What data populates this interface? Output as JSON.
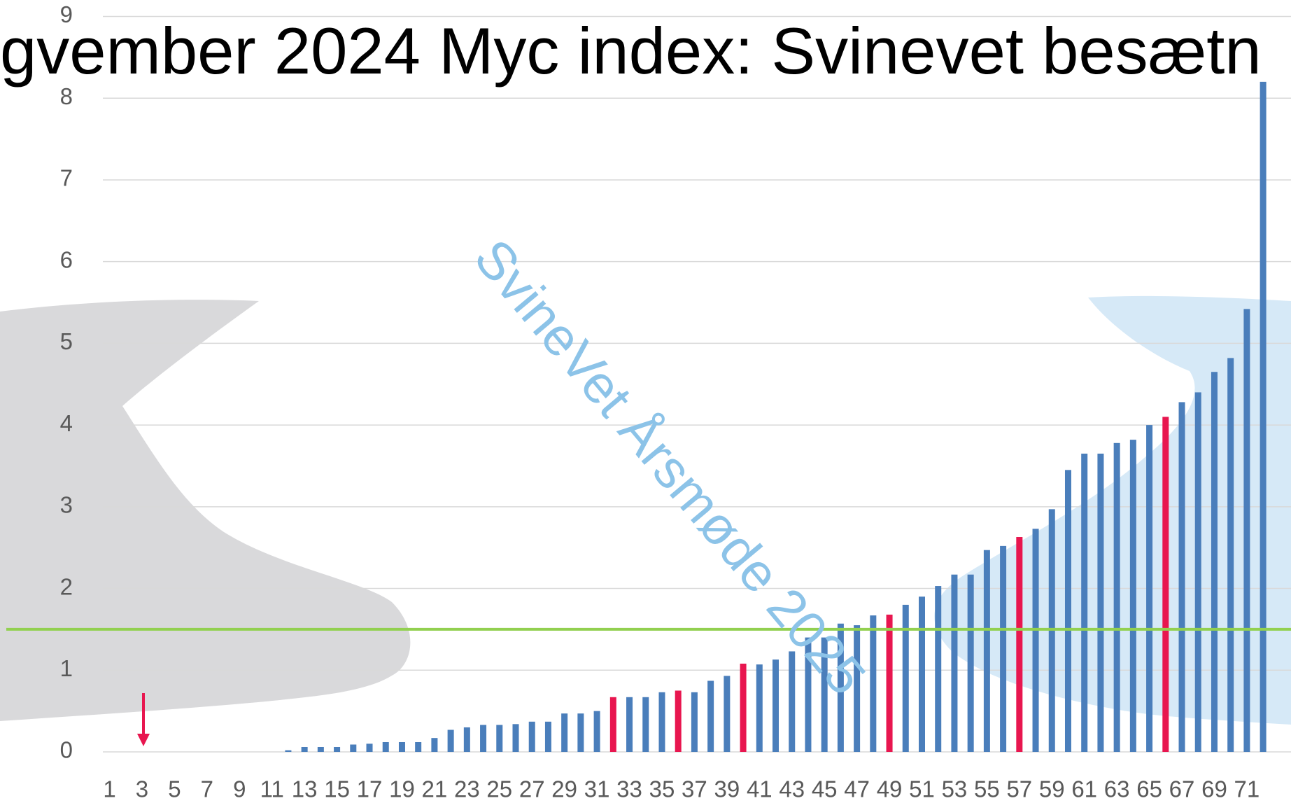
{
  "chart_data": {
    "type": "bar",
    "title": "gvember 2024 Myc index: Svinevet besætn",
    "watermark": "SvineVet Årsmøde 2025",
    "categories": [
      "1",
      null,
      "3",
      null,
      "5",
      null,
      "7",
      null,
      "9",
      null,
      "11",
      null,
      "13",
      null,
      "15",
      null,
      "17",
      null,
      "19",
      null,
      "21",
      null,
      "23",
      null,
      "25",
      null,
      "27",
      null,
      "29",
      null,
      "31",
      null,
      "33",
      null,
      "35",
      null,
      "37",
      null,
      "39",
      null,
      "41",
      null,
      "43",
      null,
      "45",
      null,
      "47",
      null,
      "49",
      null,
      "51",
      null,
      "53",
      null,
      "55",
      null,
      "57",
      null,
      "59",
      null,
      "61",
      null,
      "63",
      null,
      "65",
      null,
      "67",
      null,
      "69",
      null,
      "71",
      null
    ],
    "values": [
      0,
      0,
      0,
      0,
      0,
      0,
      0,
      0,
      0,
      0,
      0,
      0.02,
      0.06,
      0.06,
      0.06,
      0.09,
      0.1,
      0.12,
      0.12,
      0.12,
      0.17,
      0.27,
      0.3,
      0.33,
      0.33,
      0.34,
      0.37,
      0.37,
      0.47,
      0.47,
      0.5,
      0.67,
      0.67,
      0.67,
      0.73,
      0.75,
      0.73,
      0.87,
      0.93,
      1.08,
      1.07,
      1.13,
      1.23,
      1.4,
      1.4,
      1.57,
      1.55,
      1.67,
      1.68,
      1.8,
      1.9,
      2.03,
      2.17,
      2.17,
      2.47,
      2.52,
      2.63,
      2.73,
      2.97,
      3.45,
      3.65,
      3.65,
      3.78,
      3.82,
      4.0,
      4.1,
      4.28,
      4.4,
      4.65,
      4.82,
      5.42,
      8.2
    ],
    "colors": [
      "#4a7ebb",
      "#4a7ebb",
      "#4a7ebb",
      "#4a7ebb",
      "#4a7ebb",
      "#4a7ebb",
      "#4a7ebb",
      "#4a7ebb",
      "#4a7ebb",
      "#4a7ebb",
      "#4a7ebb",
      "#4a7ebb",
      "#4a7ebb",
      "#4a7ebb",
      "#4a7ebb",
      "#4a7ebb",
      "#4a7ebb",
      "#4a7ebb",
      "#4a7ebb",
      "#4a7ebb",
      "#4a7ebb",
      "#4a7ebb",
      "#4a7ebb",
      "#4a7ebb",
      "#4a7ebb",
      "#4a7ebb",
      "#4a7ebb",
      "#4a7ebb",
      "#4a7ebb",
      "#4a7ebb",
      "#4a7ebb",
      "#e8164f",
      "#4a7ebb",
      "#4a7ebb",
      "#4a7ebb",
      "#e8164f",
      "#4a7ebb",
      "#4a7ebb",
      "#4a7ebb",
      "#e8164f",
      "#4a7ebb",
      "#4a7ebb",
      "#4a7ebb",
      "#4a7ebb",
      "#4a7ebb",
      "#4a7ebb",
      "#4a7ebb",
      "#4a7ebb",
      "#e8164f",
      "#4a7ebb",
      "#4a7ebb",
      "#4a7ebb",
      "#4a7ebb",
      "#4a7ebb",
      "#4a7ebb",
      "#4a7ebb",
      "#e8164f",
      "#4a7ebb",
      "#4a7ebb",
      "#4a7ebb",
      "#4a7ebb",
      "#4a7ebb",
      "#4a7ebb",
      "#4a7ebb",
      "#4a7ebb",
      "#e8164f",
      "#4a7ebb",
      "#4a7ebb",
      "#4a7ebb",
      "#4a7ebb",
      "#4a7ebb",
      "#4a7ebb"
    ],
    "ylim": [
      0,
      9
    ],
    "yticks": [
      0,
      1,
      2,
      3,
      4,
      5,
      6,
      7,
      8,
      9
    ],
    "grid": true,
    "reference_line": {
      "value": 1.5,
      "color": "#92d050"
    }
  }
}
